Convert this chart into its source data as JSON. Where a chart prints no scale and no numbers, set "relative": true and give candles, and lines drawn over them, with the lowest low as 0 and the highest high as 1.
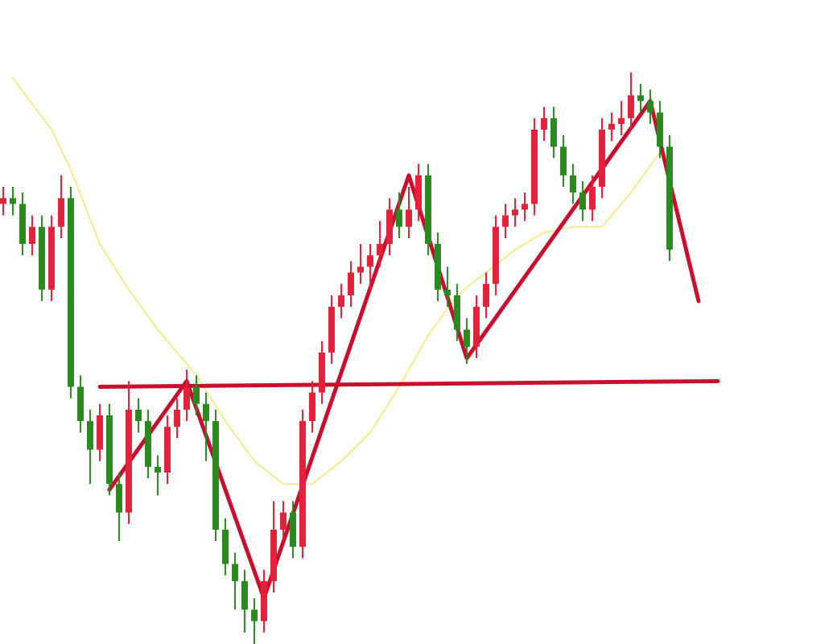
{
  "chart_data": {
    "type": "candlestick",
    "relative": true,
    "categories": [
      null,
      null,
      null,
      null,
      null,
      null,
      null,
      null,
      null,
      null,
      null,
      null,
      null,
      null,
      null,
      null,
      null,
      null,
      null,
      null,
      null,
      null,
      null,
      null,
      null,
      null,
      null,
      null,
      null,
      null,
      null,
      null,
      null,
      null,
      null,
      null,
      null,
      null,
      null,
      null,
      null,
      null,
      null,
      null,
      null,
      null,
      null,
      null,
      null,
      null,
      null,
      null,
      null,
      null,
      null,
      null,
      null,
      null,
      null,
      null,
      null,
      null,
      null,
      null,
      null,
      null,
      null,
      null,
      null,
      null,
      null,
      null,
      null,
      null,
      null,
      null
    ],
    "ohlc": [
      [
        0.77,
        0.8,
        0.75,
        0.78
      ],
      [
        0.78,
        0.8,
        0.75,
        0.77
      ],
      [
        0.77,
        0.79,
        0.68,
        0.7
      ],
      [
        0.7,
        0.75,
        0.68,
        0.73
      ],
      [
        0.73,
        0.75,
        0.6,
        0.62
      ],
      [
        0.62,
        0.75,
        0.6,
        0.73
      ],
      [
        0.73,
        0.82,
        0.71,
        0.78
      ],
      [
        0.78,
        0.8,
        0.43,
        0.45
      ],
      [
        0.45,
        0.47,
        0.37,
        0.39
      ],
      [
        0.39,
        0.41,
        0.28,
        0.34
      ],
      [
        0.34,
        0.42,
        0.32,
        0.4
      ],
      [
        0.4,
        0.42,
        0.26,
        0.28
      ],
      [
        0.28,
        0.3,
        0.18,
        0.23
      ],
      [
        0.23,
        0.46,
        0.21,
        0.41
      ],
      [
        0.41,
        0.43,
        0.37,
        0.39
      ],
      [
        0.39,
        0.41,
        0.29,
        0.31
      ],
      [
        0.31,
        0.33,
        0.26,
        0.3
      ],
      [
        0.3,
        0.4,
        0.28,
        0.38
      ],
      [
        0.38,
        0.43,
        0.36,
        0.41
      ],
      [
        0.41,
        0.48,
        0.39,
        0.45
      ],
      [
        0.45,
        0.47,
        0.4,
        0.42
      ],
      [
        0.42,
        0.44,
        0.32,
        0.39
      ],
      [
        0.39,
        0.41,
        0.18,
        0.2
      ],
      [
        0.2,
        0.22,
        0.12,
        0.14
      ],
      [
        0.14,
        0.16,
        0.06,
        0.11
      ],
      [
        0.11,
        0.13,
        0.02,
        0.06
      ],
      [
        0.06,
        0.08,
        0,
        0.04
      ],
      [
        0.04,
        0.13,
        0.02,
        0.11
      ],
      [
        0.11,
        0.25,
        0.09,
        0.2
      ],
      [
        0.2,
        0.25,
        0.18,
        0.23
      ],
      [
        0.23,
        0.25,
        0.15,
        0.17
      ],
      [
        0.17,
        0.41,
        0.15,
        0.39
      ],
      [
        0.39,
        0.46,
        0.37,
        0.44
      ],
      [
        0.44,
        0.53,
        0.42,
        0.51
      ],
      [
        0.51,
        0.61,
        0.49,
        0.59
      ],
      [
        0.59,
        0.63,
        0.57,
        0.61
      ],
      [
        0.61,
        0.67,
        0.59,
        0.65
      ],
      [
        0.65,
        0.7,
        0.63,
        0.66
      ],
      [
        0.66,
        0.7,
        0.62,
        0.68
      ],
      [
        0.68,
        0.74,
        0.66,
        0.7
      ],
      [
        0.7,
        0.78,
        0.68,
        0.76
      ],
      [
        0.76,
        0.79,
        0.71,
        0.73
      ],
      [
        0.73,
        0.8,
        0.71,
        0.76
      ],
      [
        0.76,
        0.84,
        0.74,
        0.82
      ],
      [
        0.82,
        0.84,
        0.68,
        0.7
      ],
      [
        0.7,
        0.72,
        0.6,
        0.62
      ],
      [
        0.62,
        0.66,
        0.59,
        0.61
      ],
      [
        0.61,
        0.63,
        0.53,
        0.55
      ],
      [
        0.55,
        0.57,
        0.49,
        0.52
      ],
      [
        0.52,
        0.61,
        0.5,
        0.59
      ],
      [
        0.59,
        0.65,
        0.57,
        0.63
      ],
      [
        0.63,
        0.75,
        0.61,
        0.73
      ],
      [
        0.73,
        0.77,
        0.71,
        0.75
      ],
      [
        0.75,
        0.78,
        0.73,
        0.76
      ],
      [
        0.76,
        0.79,
        0.74,
        0.77
      ],
      [
        0.77,
        0.92,
        0.75,
        0.9
      ],
      [
        0.9,
        0.94,
        0.88,
        0.92
      ],
      [
        0.92,
        0.94,
        0.85,
        0.87
      ],
      [
        0.87,
        0.89,
        0.8,
        0.82
      ],
      [
        0.82,
        0.84,
        0.77,
        0.79
      ],
      [
        0.79,
        0.81,
        0.74,
        0.76
      ],
      [
        0.76,
        0.82,
        0.74,
        0.8
      ],
      [
        0.8,
        0.92,
        0.78,
        0.9
      ],
      [
        0.9,
        0.93,
        0.88,
        0.91
      ],
      [
        0.91,
        0.95,
        0.89,
        0.92
      ],
      [
        0.92,
        1,
        0.9,
        0.96
      ],
      [
        0.96,
        0.98,
        0.93,
        0.95
      ],
      [
        0.95,
        0.97,
        0.91,
        0.93
      ],
      [
        0.93,
        0.95,
        0.85,
        0.87
      ],
      [
        0.87,
        0.89,
        0.67,
        0.69
      ],
      null,
      null,
      null,
      null,
      null,
      null
    ],
    "colors": [
      "#e3213b",
      "#2a8a1f",
      "#2a8a1f",
      "#e3213b",
      "#2a8a1f",
      "#e3213b",
      "#e3213b",
      "#2a8a1f",
      "#2a8a1f",
      "#2a8a1f",
      "#e3213b",
      "#2a8a1f",
      "#2a8a1f",
      "#e3213b",
      "#2a8a1f",
      "#2a8a1f",
      "#2a8a1f",
      "#e3213b",
      "#e3213b",
      "#e3213b",
      "#2a8a1f",
      "#2a8a1f",
      "#2a8a1f",
      "#2a8a1f",
      "#2a8a1f",
      "#2a8a1f",
      "#2a8a1f",
      "#e3213b",
      "#e3213b",
      "#e3213b",
      "#2a8a1f",
      "#e3213b",
      "#e3213b",
      "#e3213b",
      "#e3213b",
      "#e3213b",
      "#e3213b",
      "#e3213b",
      "#e3213b",
      "#e3213b",
      "#e3213b",
      "#2a8a1f",
      "#e3213b",
      "#e3213b",
      "#2a8a1f",
      "#2a8a1f",
      "#2a8a1f",
      "#2a8a1f",
      "#2a8a1f",
      "#e3213b",
      "#e3213b",
      "#e3213b",
      "#e3213b",
      "#e3213b",
      "#e3213b",
      "#e3213b",
      "#e3213b",
      "#2a8a1f",
      "#2a8a1f",
      "#2a8a1f",
      "#2a8a1f",
      "#e3213b",
      "#e3213b",
      "#e3213b",
      "#e3213b",
      "#e3213b",
      "#2a8a1f",
      "#2a8a1f",
      "#2a8a1f",
      "#2a8a1f",
      null,
      null,
      null,
      null,
      null,
      null
    ],
    "series": [
      {
        "type": "line",
        "color": "#f4ee9c",
        "values": [
          null,
          0.99,
          null,
          null,
          null,
          0.9,
          null,
          0.83,
          null,
          null,
          0.7,
          null,
          null,
          0.62,
          null,
          null,
          0.55,
          null,
          null,
          null,
          0.47,
          null,
          null,
          0.39,
          null,
          null,
          0.32,
          null,
          null,
          0.28,
          null,
          null,
          0.28,
          null,
          null,
          0.32,
          null,
          null,
          0.37,
          null,
          null,
          0.45,
          null,
          null,
          0.54,
          null,
          null,
          0.61,
          null,
          null,
          0.65,
          null,
          null,
          0.69,
          null,
          null,
          0.72,
          null,
          null,
          0.73,
          null,
          null,
          0.73,
          null,
          null,
          0.79,
          null,
          null,
          0.86,
          null,
          null,
          null,
          null,
          null,
          null,
          null
        ]
      },
      {
        "type": "line",
        "color": "#c8102e",
        "values": [
          null,
          null,
          null,
          null,
          null,
          null,
          null,
          null,
          null,
          null,
          null,
          0.27,
          null,
          null,
          null,
          null,
          null,
          null,
          null,
          0.46,
          null,
          null,
          null,
          null,
          null,
          null,
          null,
          0.08,
          null,
          null,
          null,
          null,
          null,
          null,
          null,
          null,
          null,
          null,
          null,
          null,
          null,
          null,
          0.82,
          null,
          null,
          null,
          null,
          null,
          0.5,
          null,
          null,
          null,
          null,
          null,
          null,
          null,
          null,
          null,
          null,
          null,
          null,
          null,
          null,
          null,
          null,
          null,
          null,
          0.95,
          null,
          null,
          null,
          null,
          0.6,
          null,
          null,
          null
        ]
      },
      {
        "type": "line",
        "color": "#c8102e",
        "values": [
          null,
          null,
          null,
          null,
          null,
          null,
          null,
          null,
          null,
          null,
          0.45,
          null,
          null,
          null,
          null,
          null,
          null,
          null,
          null,
          null,
          null,
          null,
          null,
          null,
          null,
          null,
          null,
          null,
          null,
          null,
          null,
          null,
          null,
          null,
          null,
          null,
          null,
          null,
          null,
          null,
          null,
          null,
          null,
          null,
          null,
          null,
          null,
          null,
          null,
          null,
          null,
          null,
          null,
          null,
          null,
          null,
          null,
          null,
          null,
          null,
          null,
          null,
          null,
          null,
          null,
          null,
          null,
          null,
          null,
          null,
          null,
          null,
          null,
          null,
          0.46,
          null
        ]
      }
    ]
  }
}
